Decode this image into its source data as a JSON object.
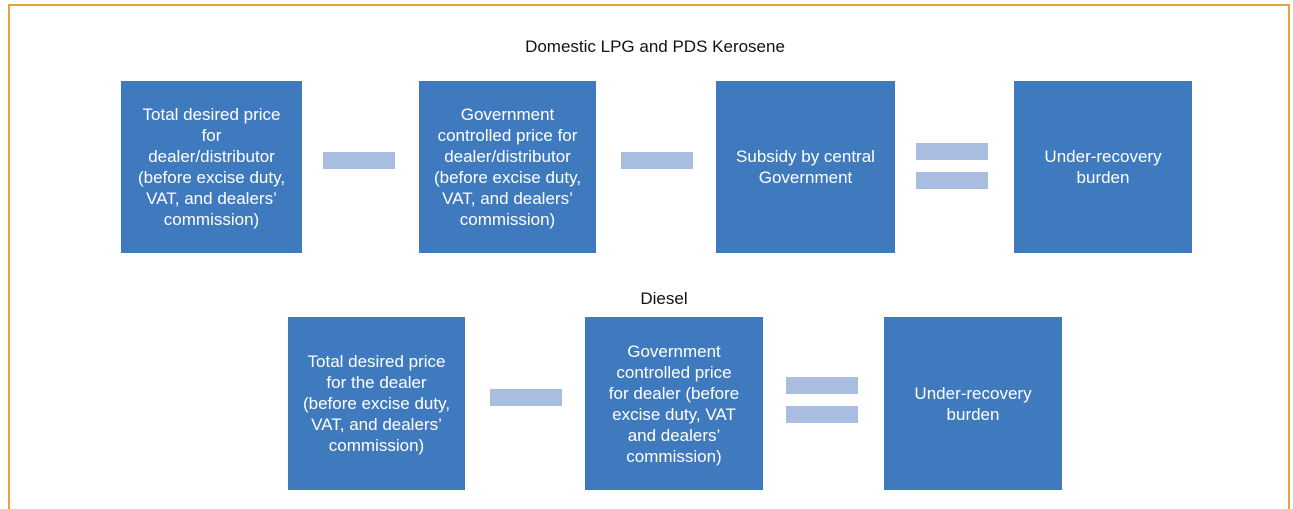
{
  "rows": [
    {
      "title": "Domestic LPG and PDS Kerosene",
      "boxes": [
        {
          "lines": [
            "Total desired price",
            "for",
            "dealer/distributor",
            "(before excise duty,",
            "VAT, and dealers’",
            "commission)"
          ]
        },
        {
          "lines": [
            "Government",
            "controlled price for",
            "dealer/distributor",
            "(before excise duty,",
            "VAT, and dealers’",
            "commission)"
          ]
        },
        {
          "lines": [
            "Subsidy by central",
            "Government"
          ]
        },
        {
          "lines": [
            "Under-recovery",
            "burden"
          ]
        }
      ]
    },
    {
      "title": "Diesel",
      "boxes": [
        {
          "lines": [
            "Total desired price",
            "for the dealer",
            "(before excise duty,",
            "VAT, and dealers’",
            "commission)"
          ]
        },
        {
          "lines": [
            "Government",
            "controlled price",
            "for dealer (before",
            "excise duty, VAT",
            "and dealers’",
            "commission)"
          ]
        },
        {
          "lines": [
            "Under-recovery",
            "burden"
          ]
        }
      ]
    }
  ]
}
